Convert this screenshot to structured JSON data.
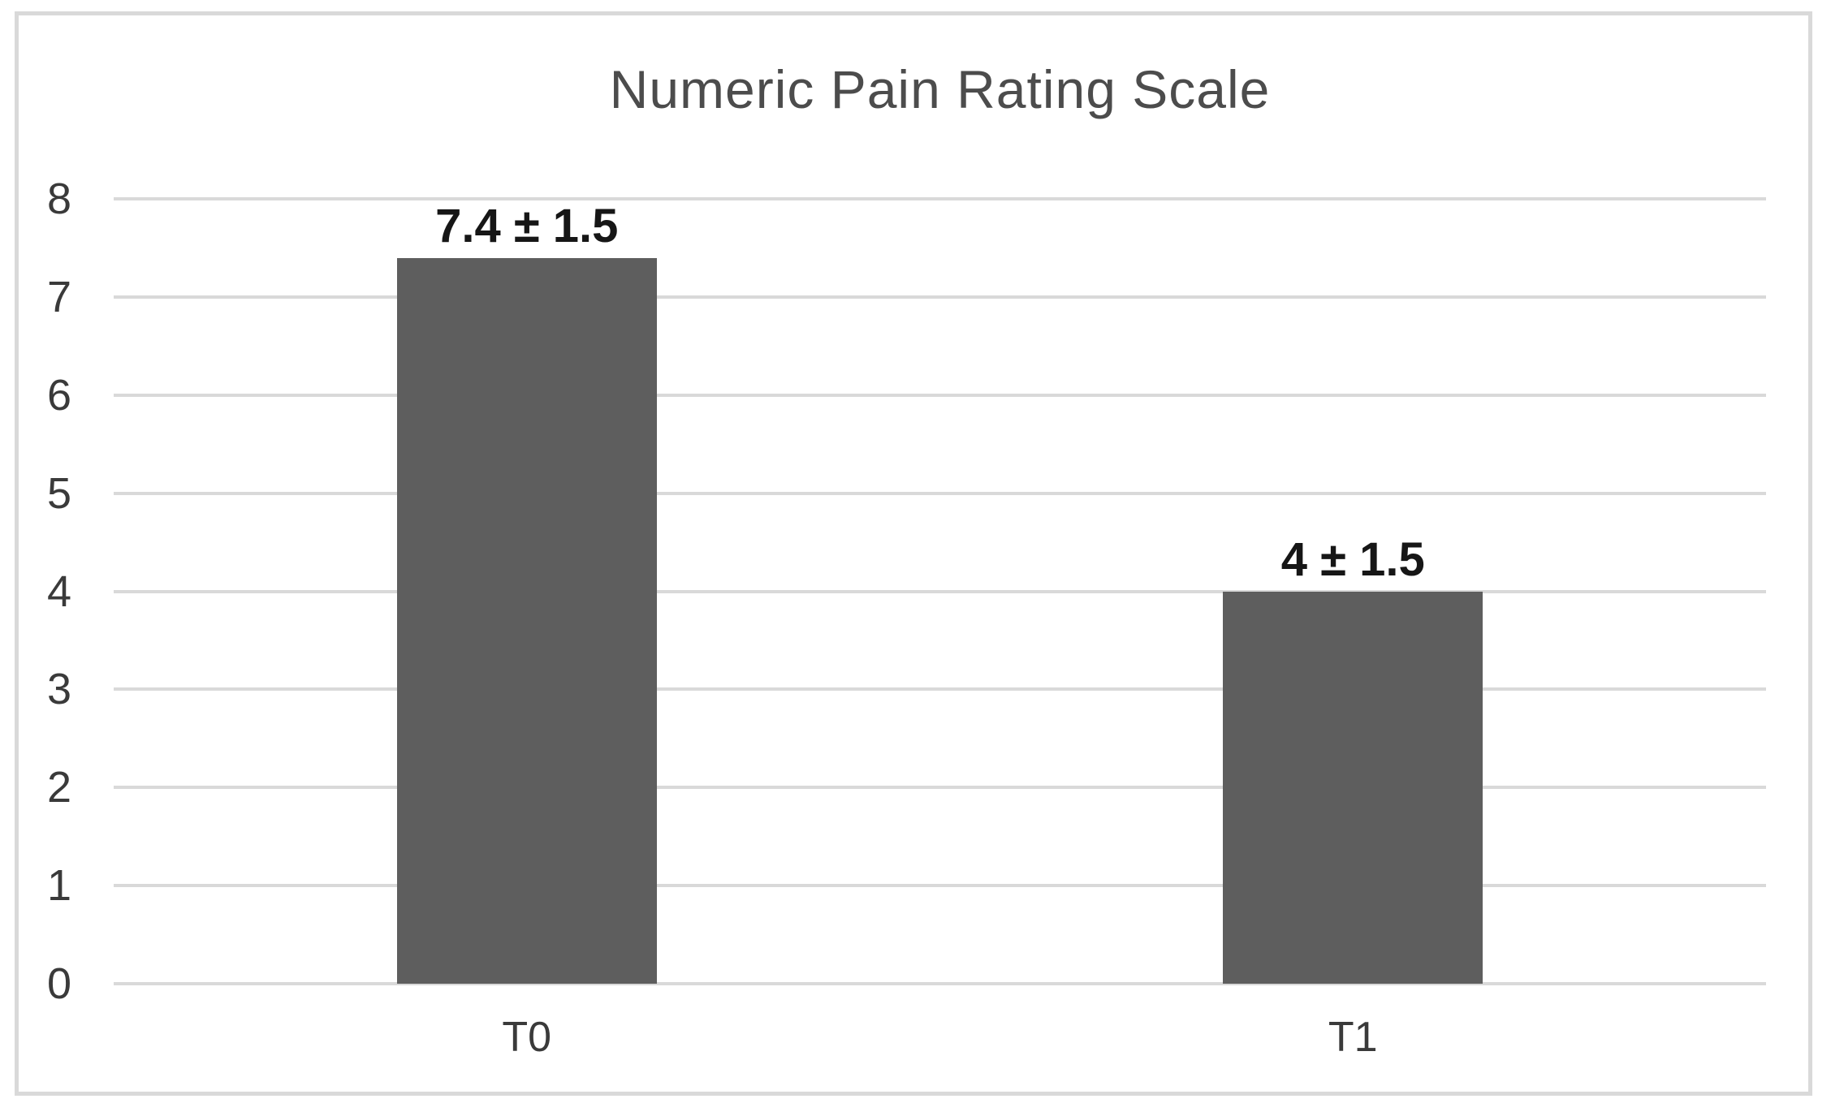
{
  "chart_data": {
    "type": "bar",
    "title": "Numeric Pain Rating Scale",
    "categories": [
      "T0",
      "T1"
    ],
    "values": [
      7.4,
      4
    ],
    "errors": [
      1.5,
      1.5
    ],
    "bar_labels": [
      "7.4 ± 1.5",
      "4 ± 1.5"
    ],
    "xlabel": "",
    "ylabel": "",
    "ylim": [
      0,
      8
    ],
    "yticks": [
      0,
      1,
      2,
      3,
      4,
      5,
      6,
      7,
      8
    ],
    "grid": "horizontal",
    "legend": "none",
    "colors": {
      "bar": "#5e5e5e",
      "gridline": "#d9d9d9",
      "frame_border": "#d9d9d9",
      "title_text": "#4c4c4c",
      "axis_text": "#3a3a3a",
      "value_label_text": "#161616",
      "background": "#ffffff"
    }
  }
}
